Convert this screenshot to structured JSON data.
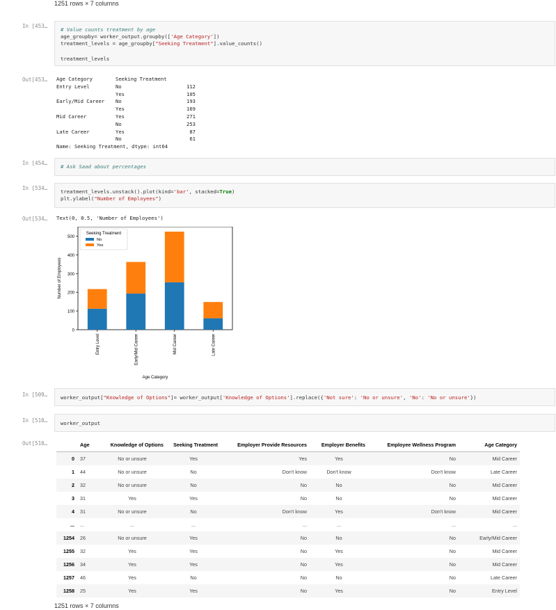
{
  "top_note": "1251 rows × 7 columns",
  "bottom_note": "1251 rows × 7 columns",
  "cells": {
    "c453_in": "In [453…",
    "c453_out": "Out[453…",
    "c454_in": "In [454…",
    "c534_in": "In [534…",
    "c534_out": "Out[534…",
    "c509_in": "In [509…",
    "c510_in": "In [510…",
    "c510_out": "Out[510…"
  },
  "code": {
    "c453_l1": "# Value counts treatment by age",
    "c453_l2a": "age_groupby= worker_output.groupby([",
    "c453_l2s": "'Age Category'",
    "c453_l2b": "])",
    "c453_l3a": "treatment_levels = age_groupby[",
    "c453_l3s": "\"Seeking Treatment\"",
    "c453_l3b": "].value_counts()",
    "c453_l5": "treatment_levels",
    "c454_l1": "# Ask Saad about percentages",
    "c534_l1a": "treatment_levels.unstack().plot(kind=",
    "c534_l1s": "'bar'",
    "c534_l1b": ", stacked=",
    "c534_l1k": "True",
    "c534_l1c": ")",
    "c534_l2a": "plt.ylabel(",
    "c534_l2s": "\"Number of Employees\"",
    "c534_l2b": ")",
    "c509_a": "worker_output[",
    "c509_s1": "\"Knowledge of Options\"",
    "c509_b": "]= worker_output[",
    "c509_s2": "'Knowledge of Options'",
    "c509_c": "].replace({",
    "c509_s3": "'Not sure'",
    "c509_d": ": ",
    "c509_s4": "'No or unsure'",
    "c509_e": ", ",
    "c509_s5": "'No'",
    "c509_f": ": ",
    "c509_s6": "'No or unsure'",
    "c509_g": "})",
    "c510_l1": "worker_output"
  },
  "series_output": {
    "header_col1": "Age Category",
    "header_col2": "Seeking Treatment",
    "rows": [
      {
        "cat": "Entry Level",
        "treat": "No",
        "count": "112"
      },
      {
        "cat": "",
        "treat": "Yes",
        "count": "105"
      },
      {
        "cat": "Early/Mid Career",
        "treat": "No",
        "count": "193"
      },
      {
        "cat": "",
        "treat": "Yes",
        "count": "169"
      },
      {
        "cat": "Mid Career",
        "treat": "Yes",
        "count": "271"
      },
      {
        "cat": "",
        "treat": "No",
        "count": "253"
      },
      {
        "cat": "Late Career",
        "treat": "Yes",
        "count": "87"
      },
      {
        "cat": "",
        "treat": "No",
        "count": "61"
      }
    ],
    "footer": "Name: Seeking Treatment, dtype: int64"
  },
  "text_out": "Text(0, 0.5, 'Number of Employees')",
  "chart_data": {
    "type": "bar",
    "stacked": true,
    "categories": [
      "Entry Level",
      "Early/Mid Career",
      "Mid Career",
      "Late Career"
    ],
    "series": [
      {
        "name": "No",
        "values": [
          112,
          193,
          253,
          61
        ],
        "color": "#1f77b4"
      },
      {
        "name": "Yes",
        "values": [
          105,
          169,
          271,
          87
        ],
        "color": "#ff7f0e"
      }
    ],
    "xlabel": "Age Category",
    "ylabel": "Number of Employees",
    "legend_title": "Seeking Treatment",
    "legend_position": "top-left",
    "ylim": [
      0,
      550
    ],
    "yticks": [
      "0",
      "100",
      "200",
      "300",
      "400",
      "500"
    ]
  },
  "table": {
    "columns": [
      "Age",
      "Knowledge of Options",
      "Seeking Treatment",
      "Employer Provide Resources",
      "Employer Benefits",
      "Employee Wellness Program",
      "Age Category"
    ],
    "rows": [
      {
        "idx": "0",
        "cells": [
          "37",
          "No or unsure",
          "Yes",
          "Yes",
          "Yes",
          "No",
          "Mid Career"
        ]
      },
      {
        "idx": "1",
        "cells": [
          "44",
          "No or unsure",
          "No",
          "Don't know",
          "Don't know",
          "Don't know",
          "Late Career"
        ]
      },
      {
        "idx": "2",
        "cells": [
          "32",
          "No or unsure",
          "No",
          "No",
          "No",
          "No",
          "Mid Career"
        ]
      },
      {
        "idx": "3",
        "cells": [
          "31",
          "Yes",
          "Yes",
          "No",
          "No",
          "No",
          "Mid Career"
        ]
      },
      {
        "idx": "4",
        "cells": [
          "31",
          "No or unsure",
          "No",
          "Don't know",
          "Yes",
          "Don't know",
          "Mid Career"
        ]
      },
      {
        "idx": "...",
        "cells": [
          "...",
          "...",
          "...",
          "...",
          "...",
          "...",
          "..."
        ]
      },
      {
        "idx": "1254",
        "cells": [
          "26",
          "No or unsure",
          "Yes",
          "No",
          "No",
          "No",
          "Early/Mid Career"
        ]
      },
      {
        "idx": "1255",
        "cells": [
          "32",
          "Yes",
          "Yes",
          "No",
          "Yes",
          "No",
          "Mid Career"
        ]
      },
      {
        "idx": "1256",
        "cells": [
          "34",
          "Yes",
          "Yes",
          "No",
          "Yes",
          "No",
          "Mid Career"
        ]
      },
      {
        "idx": "1257",
        "cells": [
          "46",
          "Yes",
          "No",
          "No",
          "No",
          "No",
          "Late Career"
        ]
      },
      {
        "idx": "1258",
        "cells": [
          "25",
          "Yes",
          "Yes",
          "No",
          "Yes",
          "No",
          "Entry Level"
        ]
      }
    ]
  }
}
